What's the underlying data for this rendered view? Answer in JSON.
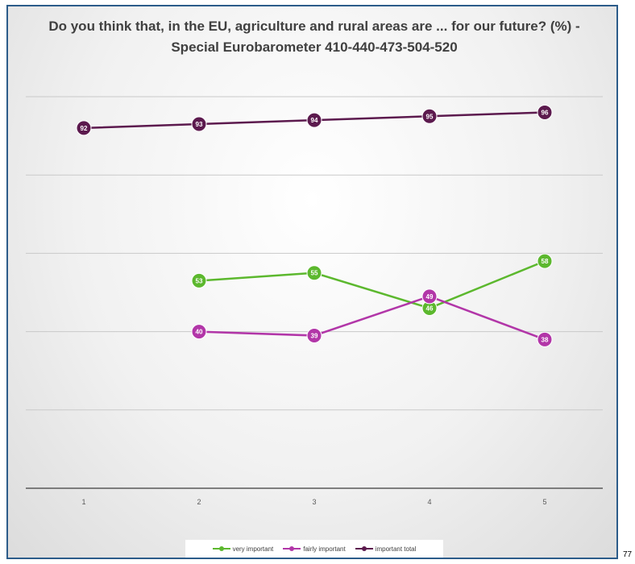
{
  "corner_note": "77",
  "chart_data": {
    "type": "line",
    "title": "Do you think that, in the EU, agriculture and rural areas are ... for our future? (%) - Special Eurobarometer 410-440-473-504-520",
    "xlabel": "",
    "ylabel": "",
    "x": [
      1,
      2,
      3,
      4,
      5
    ],
    "ylim": [
      0,
      100
    ],
    "grid": true,
    "legend_position": "bottom",
    "series": [
      {
        "name": "very important",
        "color": "#5cb82e",
        "values": [
          null,
          53,
          55,
          46,
          58
        ]
      },
      {
        "name": "fairly important",
        "color": "#b236a8",
        "values": [
          null,
          40,
          39,
          49,
          38
        ]
      },
      {
        "name": "important total",
        "color": "#5c1a4e",
        "values": [
          92,
          93,
          94,
          95,
          96
        ]
      }
    ]
  }
}
